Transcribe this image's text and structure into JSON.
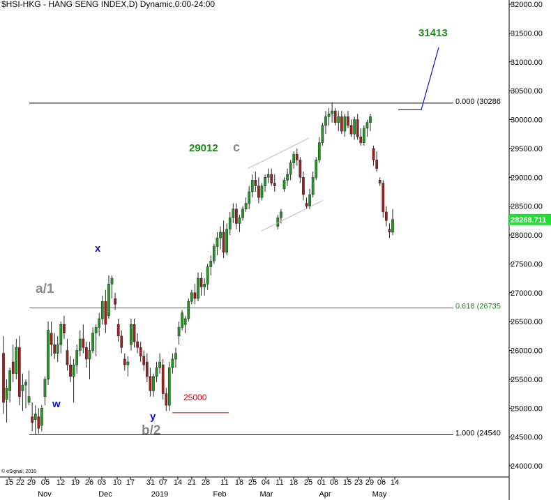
{
  "chart_data": {
    "type": "candlestick",
    "title": "$HSI-HKG - HANG SENG INDEX,D) Dynamic,0:00-24:00",
    "credit": "© eSignal, 2016",
    "y_range": [
      23500,
      32200
    ],
    "y_ticks": [
      24000,
      24500,
      25000,
      25500,
      26000,
      26500,
      27000,
      27500,
      28000,
      28500,
      29000,
      29500,
      30000,
      30500,
      31000,
      31500,
      32000
    ],
    "y_tick_labels": [
      "24000.00",
      "24500.00",
      "25000.00",
      "25500.00",
      "26000.00",
      "26500.00",
      "27000.00",
      "27500.00",
      "28000.00",
      "28500.00",
      "29000.00",
      "29500.00",
      "30000.00",
      "30500.00",
      "31000.00",
      "31500.00",
      "32000.00"
    ],
    "x_date_labels": [
      "15",
      "22",
      "29",
      "05",
      "12",
      "19",
      "26",
      "03",
      "10",
      "17",
      "31",
      "07",
      "14",
      "21",
      "28",
      "11",
      "18",
      "25",
      "04",
      "11",
      "18",
      "25",
      "01",
      "08",
      "15",
      "23",
      "29",
      "06",
      "14"
    ],
    "x_month_labels": [
      "Nov",
      "Dec",
      "2019",
      "Feb",
      "Mar",
      "Apr",
      "May"
    ],
    "last_price": {
      "label": "28268.711",
      "value": 28268.711,
      "color": "#22dd33"
    },
    "fib_levels": [
      {
        "label": "0.000 (30286",
        "value": 30286,
        "color": "#000000"
      },
      {
        "label": "0.618 (26735",
        "value": 26735,
        "color": "#228822"
      },
      {
        "label": "1.000 (24540",
        "value": 24540,
        "color": "#000000"
      }
    ],
    "annotations": [
      {
        "text": "31413",
        "value": 31413,
        "color": "#1a8a1a"
      },
      {
        "text": "29012",
        "value": 29012,
        "color": "#1a8a1a"
      },
      {
        "text": "c",
        "color": "#888888"
      },
      {
        "text": "x",
        "color": "#1111cc"
      },
      {
        "text": "w",
        "color": "#1111cc"
      },
      {
        "text": "y",
        "color": "#1111cc"
      },
      {
        "text": "a/1",
        "color": "#888888"
      },
      {
        "text": "b/2",
        "color": "#888888"
      },
      {
        "text": "25000",
        "value": 25000,
        "color": "#dd0000"
      }
    ],
    "candles_ohlc": [
      [
        25950,
        26250,
        24900,
        25100
      ],
      [
        25150,
        25500,
        24750,
        25350
      ],
      [
        25300,
        25700,
        25100,
        25650
      ],
      [
        25800,
        26100,
        25450,
        25600
      ],
      [
        25600,
        26200,
        25500,
        26050
      ],
      [
        26050,
        26250,
        25050,
        25200
      ],
      [
        25300,
        25600,
        24950,
        25400
      ],
      [
        25400,
        25500,
        25000,
        25450
      ],
      [
        25100,
        25650,
        25050,
        25200
      ],
      [
        24850,
        25100,
        24600,
        24750
      ],
      [
        24800,
        25050,
        24550,
        24900
      ],
      [
        24850,
        25000,
        24560,
        24650
      ],
      [
        24700,
        25050,
        24600,
        25000
      ],
      [
        25200,
        25550,
        25050,
        25500
      ],
      [
        25500,
        26500,
        25400,
        26350
      ],
      [
        26300,
        26500,
        25900,
        26100
      ],
      [
        26100,
        26300,
        25850,
        25950
      ],
      [
        25950,
        26250,
        25800,
        26100
      ],
      [
        26100,
        26500,
        25950,
        26450
      ],
      [
        26450,
        26600,
        26200,
        26300
      ],
      [
        26000,
        26200,
        25650,
        25750
      ],
      [
        25750,
        25900,
        25450,
        25550
      ],
      [
        25550,
        25850,
        25100,
        25750
      ],
      [
        25750,
        26100,
        25600,
        26000
      ],
      [
        26000,
        26350,
        25900,
        26200
      ],
      [
        26200,
        26450,
        25950,
        26050
      ],
      [
        26050,
        26150,
        25700,
        25850
      ],
      [
        25850,
        26150,
        25500,
        26000
      ],
      [
        26000,
        26400,
        25950,
        26300
      ],
      [
        26300,
        26450,
        25900,
        26400
      ],
      [
        26400,
        26650,
        26250,
        26550
      ],
      [
        26550,
        26950,
        26450,
        26850
      ],
      [
        26850,
        27050,
        26300,
        26450
      ],
      [
        26600,
        27300,
        26550,
        27150
      ],
      [
        27150,
        27300,
        26900,
        27250
      ],
      [
        26900,
        27000,
        26700,
        26800
      ],
      [
        26450,
        26550,
        26150,
        26250
      ],
      [
        26250,
        26350,
        25950,
        26050
      ],
      [
        25850,
        25950,
        25650,
        25750
      ],
      [
        25750,
        25900,
        25550,
        25800
      ],
      [
        26100,
        26550,
        26000,
        26450
      ],
      [
        26450,
        26550,
        26050,
        26150
      ],
      [
        26150,
        26300,
        25950,
        26050
      ],
      [
        26050,
        26150,
        25800,
        25900
      ],
      [
        25900,
        26000,
        25650,
        25750
      ],
      [
        25800,
        25950,
        25450,
        25550
      ],
      [
        25550,
        25700,
        25200,
        25300
      ],
      [
        25300,
        25600,
        25200,
        25550
      ],
      [
        25550,
        25800,
        25450,
        25700
      ],
      [
        25700,
        25950,
        25600,
        25800
      ],
      [
        25750,
        25850,
        25150,
        25250
      ],
      [
        25250,
        25350,
        24950,
        25050
      ],
      [
        25050,
        25800,
        24950,
        25700
      ],
      [
        25700,
        25950,
        25600,
        25850
      ],
      [
        25850,
        26050,
        25700,
        25950
      ],
      [
        26250,
        26500,
        26100,
        26400
      ],
      [
        26400,
        26700,
        26350,
        26650
      ],
      [
        26450,
        26600,
        26300,
        26550
      ],
      [
        26550,
        26900,
        26500,
        26850
      ],
      [
        26850,
        27050,
        26800,
        27000
      ],
      [
        27000,
        27150,
        26800,
        26900
      ],
      [
        26900,
        27350,
        26850,
        27250
      ],
      [
        27250,
        27350,
        26950,
        27100
      ],
      [
        27100,
        27250,
        26950,
        27150
      ],
      [
        27150,
        27500,
        27050,
        27450
      ],
      [
        27450,
        27650,
        27300,
        27550
      ],
      [
        27550,
        27850,
        27500,
        27800
      ],
      [
        27800,
        28050,
        27650,
        27950
      ],
      [
        27950,
        28150,
        27750,
        28050
      ],
      [
        28050,
        28250,
        27600,
        27700
      ],
      [
        27700,
        28200,
        27650,
        28100
      ],
      [
        28100,
        28400,
        28000,
        28300
      ],
      [
        28300,
        28550,
        28200,
        28450
      ],
      [
        28450,
        28550,
        28100,
        28200
      ],
      [
        28200,
        28350,
        28050,
        28300
      ],
      [
        28300,
        28500,
        28250,
        28450
      ],
      [
        28450,
        28650,
        28400,
        28550
      ],
      [
        28550,
        28850,
        28450,
        28750
      ],
      [
        28750,
        29050,
        28650,
        28950
      ],
      [
        28950,
        29100,
        28750,
        28850
      ],
      [
        28850,
        29000,
        28550,
        28650
      ],
      [
        28650,
        28900,
        28600,
        28850
      ],
      [
        28850,
        29050,
        28750,
        29000
      ],
      [
        29000,
        29150,
        28900,
        29050
      ],
      [
        29050,
        29150,
        28850,
        28900
      ],
      [
        28900,
        29050,
        28750,
        28850
      ],
      [
        28150,
        28350,
        28100,
        28300
      ],
      [
        28300,
        28450,
        28200,
        28400
      ],
      [
        28800,
        29000,
        28750,
        28950
      ],
      [
        28950,
        29150,
        28850,
        29050
      ],
      [
        29050,
        29300,
        28950,
        29250
      ],
      [
        29250,
        29450,
        29150,
        29400
      ],
      [
        29400,
        29500,
        29200,
        29300
      ],
      [
        29300,
        29350,
        28900,
        29000
      ],
      [
        29000,
        29100,
        28600,
        28700
      ],
      [
        28550,
        28650,
        28450,
        28500
      ],
      [
        28500,
        28800,
        28450,
        28700
      ],
      [
        28700,
        29100,
        28650,
        29000
      ],
      [
        29000,
        29350,
        28950,
        29300
      ],
      [
        29300,
        29700,
        29250,
        29600
      ],
      [
        29600,
        29950,
        29550,
        29900
      ],
      [
        29900,
        30150,
        29750,
        30050
      ],
      [
        30050,
        30200,
        29900,
        30100
      ],
      [
        30100,
        30300,
        29950,
        30150
      ],
      [
        30150,
        30200,
        29900,
        29950
      ],
      [
        29950,
        30150,
        29800,
        30050
      ],
      [
        30050,
        30150,
        29750,
        29800
      ],
      [
        29800,
        30100,
        29700,
        30050
      ],
      [
        30050,
        30150,
        29850,
        29900
      ],
      [
        29900,
        30000,
        29700,
        29750
      ],
      [
        29750,
        30050,
        29650,
        30000
      ],
      [
        30000,
        30100,
        29650,
        29700
      ],
      [
        29700,
        29850,
        29550,
        29600
      ],
      [
        29600,
        29900,
        29550,
        29850
      ],
      [
        29850,
        30000,
        29700,
        29950
      ],
      [
        29950,
        30100,
        29800,
        30050
      ],
      [
        29500,
        29550,
        29200,
        29300
      ],
      [
        29300,
        29450,
        29100,
        29150
      ],
      [
        28950,
        29000,
        28850,
        28900
      ],
      [
        28900,
        28950,
        28300,
        28400
      ],
      [
        28400,
        28500,
        28150,
        28250
      ],
      [
        28100,
        28200,
        27950,
        28050
      ],
      [
        28050,
        28450,
        28000,
        28270
      ]
    ]
  }
}
